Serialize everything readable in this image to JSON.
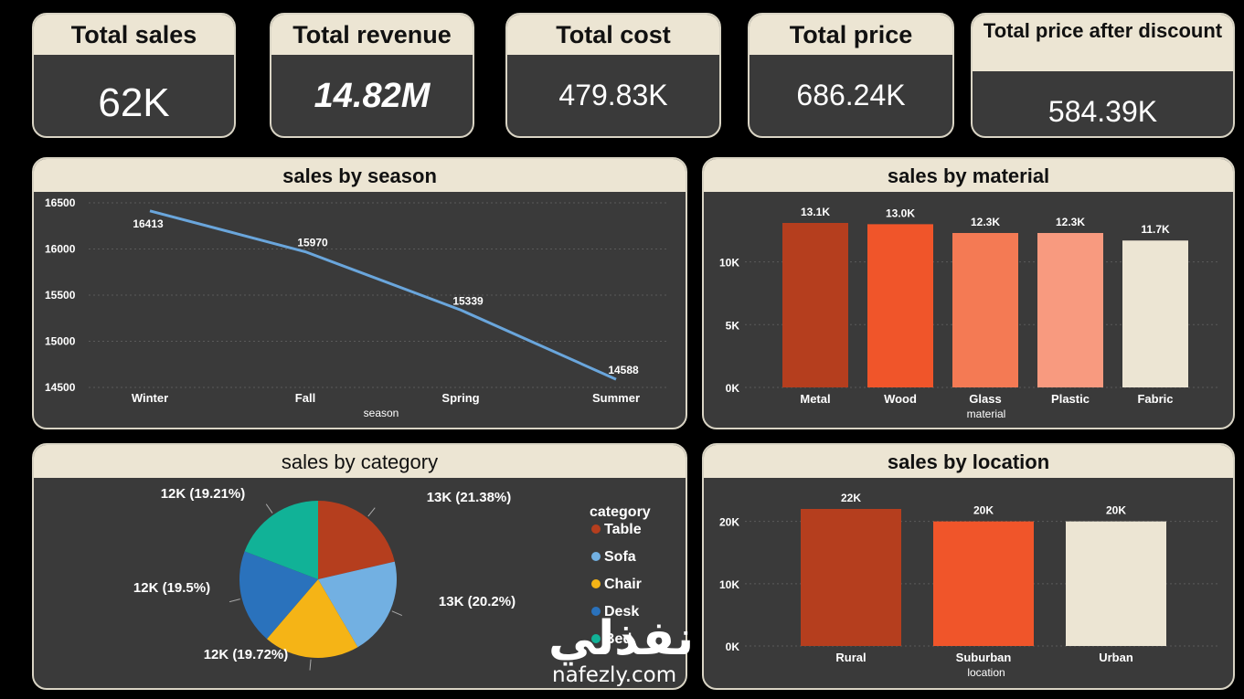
{
  "kpis": [
    {
      "title": "Total sales",
      "value": "62K"
    },
    {
      "title": "Total revenue",
      "value": "14.82M"
    },
    {
      "title": "Total cost",
      "value": "479.83K"
    },
    {
      "title": "Total price",
      "value": "686.24K"
    },
    {
      "title": "Total price after discount",
      "value": "584.39K"
    }
  ],
  "colors": {
    "line": "#6aa6dc",
    "bar_shades": [
      "#b53e1e",
      "#f0552a",
      "#f47a54",
      "#f89a7f",
      "#ece5d3"
    ],
    "pie": [
      "#b53e1e",
      "#72b0e2",
      "#f5b416",
      "#2a72bc",
      "#11b297"
    ]
  },
  "chart_data": [
    {
      "type": "line",
      "title": "sales by season",
      "xlabel": "season",
      "ylabel": "",
      "categories": [
        "Winter",
        "Fall",
        "Spring",
        "Summer"
      ],
      "values": [
        16413,
        15970,
        15339,
        14588
      ],
      "data_labels": [
        "16413",
        "15970",
        "15339",
        "14588"
      ],
      "ylim": [
        14500,
        16500
      ],
      "yticks": [
        "16500",
        "16000",
        "15500",
        "15000",
        "14500"
      ],
      "grid": true
    },
    {
      "type": "bar",
      "title": "sales by material",
      "xlabel": "material",
      "ylabel": "",
      "categories": [
        "Metal",
        "Wood",
        "Glass",
        "Plastic",
        "Fabric"
      ],
      "values": [
        13100,
        13000,
        12300,
        12300,
        11700
      ],
      "data_labels": [
        "13.1K",
        "13.0K",
        "12.3K",
        "12.3K",
        "11.7K"
      ],
      "ylim": [
        0,
        13100
      ],
      "yticks": [
        "10K",
        "5K",
        "0K"
      ],
      "ytick_values": [
        10000,
        5000,
        0
      ],
      "grid": true
    },
    {
      "type": "pie",
      "title": "sales by category",
      "legend_title": "category",
      "legend_position": "right",
      "categories": [
        "Table",
        "Sofa",
        "Chair",
        "Desk",
        "Bed"
      ],
      "values": [
        21.38,
        20.2,
        19.72,
        19.5,
        19.21
      ],
      "data_labels": [
        "13K (21.38%)",
        "13K (20.2%)",
        "12K (19.72%)",
        "12K (19.5%)",
        "12K (19.21%)"
      ]
    },
    {
      "type": "bar",
      "title": "sales by location",
      "xlabel": "location",
      "ylabel": "",
      "categories": [
        "Rural",
        "Suburban",
        "Urban"
      ],
      "values": [
        22000,
        20000,
        20000
      ],
      "data_labels": [
        "22K",
        "20K",
        "20K"
      ],
      "ylim": [
        0,
        22000
      ],
      "yticks": [
        "20K",
        "10K",
        "0K"
      ],
      "ytick_values": [
        20000,
        10000,
        0
      ],
      "grid": true
    }
  ],
  "watermark": {
    "arabic": "نفذلي",
    "latin": "nafezly.com"
  }
}
